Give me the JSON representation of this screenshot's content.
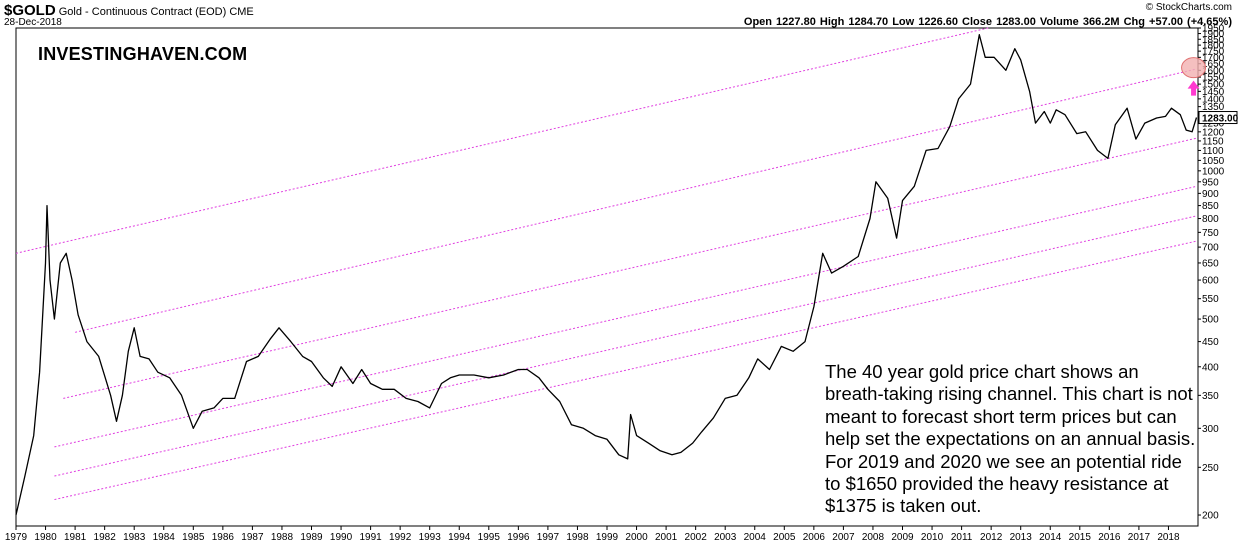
{
  "header": {
    "symbol": "$GOLD",
    "name": "Gold - Continuous Contract (EOD)",
    "exchange": "CME",
    "date": "28-Dec-2018",
    "stats": "Open 1227.80  High 1284.70  Low 1226.60  Close 1283.00  Volume 366.2M  Chg +57.00 (+4.65%)",
    "credit": "© StockCharts.com"
  },
  "brand": "INVESTINGHAVEN.COM",
  "annotation_lines": [
    "The 40 year gold price chart shows an",
    "breath-taking rising channel. This chart is not",
    "meant to forecast short term prices but can",
    "help set the expectations on an annual basis.",
    "For 2019 and 2020 we see an potential ride",
    "to $1650 provided the heavy resistance at",
    "$1375 is taken out."
  ],
  "colors": {
    "price": "#000000",
    "channel": "#e040e0",
    "target": "#ff3ad0",
    "target_fill": "#f2b0b0",
    "last_price_box": "#000000"
  },
  "chart_data": {
    "type": "line",
    "title": "$GOLD Gold - Continuous Contract (EOD) CME",
    "scale": "log",
    "ylim": [
      190,
      1950
    ],
    "xlim": [
      1979.0,
      2019.0
    ],
    "grid": false,
    "last_price_label": "1283.00",
    "y_ticks": [
      "200",
      "250",
      "300",
      "350",
      "400",
      "450",
      "500",
      "550",
      "600",
      "650",
      "700",
      "750",
      "800",
      "850",
      "900",
      "950",
      "1000",
      "1050",
      "1100",
      "1150",
      "1200",
      "1250",
      "1300",
      "1350",
      "1400",
      "1450",
      "1500",
      "1550",
      "1600",
      "1650",
      "1700",
      "1750",
      "1800",
      "1850",
      "1900",
      "1950"
    ],
    "x_ticks": [
      "1979",
      "1980",
      "1981",
      "1982",
      "1983",
      "1984",
      "1985",
      "1986",
      "1987",
      "1988",
      "1989",
      "1990",
      "1991",
      "1992",
      "1993",
      "1994",
      "1995",
      "1996",
      "1997",
      "1998",
      "1999",
      "2000",
      "2001",
      "2002",
      "2003",
      "2004",
      "2005",
      "2006",
      "2007",
      "2008",
      "2009",
      "2010",
      "2011",
      "2012",
      "2013",
      "2014",
      "2015",
      "2016",
      "2017",
      "2018"
    ],
    "series": [
      {
        "values": [
          [
            1979.0,
            200
          ],
          [
            1979.3,
            240
          ],
          [
            1979.6,
            290
          ],
          [
            1979.8,
            390
          ],
          [
            1980.0,
            650
          ],
          [
            1980.05,
            850
          ],
          [
            1980.15,
            600
          ],
          [
            1980.3,
            500
          ],
          [
            1980.5,
            650
          ],
          [
            1980.7,
            680
          ],
          [
            1980.9,
            600
          ],
          [
            1981.1,
            510
          ],
          [
            1981.4,
            450
          ],
          [
            1981.8,
            420
          ],
          [
            1982.2,
            350
          ],
          [
            1982.4,
            310
          ],
          [
            1982.6,
            350
          ],
          [
            1982.8,
            430
          ],
          [
            1983.0,
            480
          ],
          [
            1983.2,
            420
          ],
          [
            1983.5,
            415
          ],
          [
            1983.8,
            390
          ],
          [
            1984.2,
            380
          ],
          [
            1984.6,
            350
          ],
          [
            1985.0,
            300
          ],
          [
            1985.3,
            325
          ],
          [
            1985.7,
            330
          ],
          [
            1986.0,
            345
          ],
          [
            1986.4,
            345
          ],
          [
            1986.8,
            410
          ],
          [
            1987.2,
            420
          ],
          [
            1987.6,
            455
          ],
          [
            1987.9,
            480
          ],
          [
            1988.3,
            450
          ],
          [
            1988.7,
            420
          ],
          [
            1989.0,
            410
          ],
          [
            1989.4,
            380
          ],
          [
            1989.7,
            365
          ],
          [
            1990.0,
            400
          ],
          [
            1990.4,
            370
          ],
          [
            1990.7,
            395
          ],
          [
            1991.0,
            370
          ],
          [
            1991.4,
            360
          ],
          [
            1991.8,
            360
          ],
          [
            1992.2,
            345
          ],
          [
            1992.6,
            340
          ],
          [
            1993.0,
            330
          ],
          [
            1993.4,
            370
          ],
          [
            1993.7,
            380
          ],
          [
            1994.0,
            385
          ],
          [
            1994.5,
            385
          ],
          [
            1995.0,
            380
          ],
          [
            1995.5,
            385
          ],
          [
            1996.0,
            395
          ],
          [
            1996.3,
            395
          ],
          [
            1996.7,
            380
          ],
          [
            1997.0,
            360
          ],
          [
            1997.4,
            340
          ],
          [
            1997.8,
            305
          ],
          [
            1998.2,
            300
          ],
          [
            1998.6,
            290
          ],
          [
            1999.0,
            285
          ],
          [
            1999.4,
            265
          ],
          [
            1999.7,
            260
          ],
          [
            1999.8,
            320
          ],
          [
            2000.0,
            290
          ],
          [
            2000.4,
            280
          ],
          [
            2000.8,
            270
          ],
          [
            2001.2,
            265
          ],
          [
            2001.5,
            268
          ],
          [
            2001.9,
            280
          ],
          [
            2002.2,
            295
          ],
          [
            2002.6,
            315
          ],
          [
            2003.0,
            345
          ],
          [
            2003.4,
            350
          ],
          [
            2003.8,
            380
          ],
          [
            2004.1,
            415
          ],
          [
            2004.5,
            395
          ],
          [
            2004.9,
            440
          ],
          [
            2005.3,
            430
          ],
          [
            2005.7,
            450
          ],
          [
            2006.0,
            530
          ],
          [
            2006.3,
            680
          ],
          [
            2006.6,
            620
          ],
          [
            2007.0,
            640
          ],
          [
            2007.5,
            670
          ],
          [
            2007.9,
            800
          ],
          [
            2008.1,
            950
          ],
          [
            2008.5,
            880
          ],
          [
            2008.8,
            730
          ],
          [
            2009.0,
            870
          ],
          [
            2009.4,
            930
          ],
          [
            2009.8,
            1100
          ],
          [
            2010.2,
            1110
          ],
          [
            2010.6,
            1230
          ],
          [
            2010.9,
            1400
          ],
          [
            2011.3,
            1500
          ],
          [
            2011.6,
            1890
          ],
          [
            2011.8,
            1700
          ],
          [
            2012.1,
            1700
          ],
          [
            2012.5,
            1600
          ],
          [
            2012.8,
            1770
          ],
          [
            2013.0,
            1680
          ],
          [
            2013.3,
            1450
          ],
          [
            2013.5,
            1250
          ],
          [
            2013.8,
            1320
          ],
          [
            2014.0,
            1250
          ],
          [
            2014.2,
            1330
          ],
          [
            2014.5,
            1300
          ],
          [
            2014.9,
            1190
          ],
          [
            2015.2,
            1200
          ],
          [
            2015.6,
            1100
          ],
          [
            2015.95,
            1060
          ],
          [
            2016.2,
            1240
          ],
          [
            2016.6,
            1340
          ],
          [
            2016.9,
            1160
          ],
          [
            2017.2,
            1250
          ],
          [
            2017.6,
            1280
          ],
          [
            2017.9,
            1290
          ],
          [
            2018.1,
            1340
          ],
          [
            2018.4,
            1300
          ],
          [
            2018.6,
            1210
          ],
          [
            2018.8,
            1200
          ],
          [
            2018.95,
            1283
          ]
        ]
      }
    ],
    "channel_lines": [
      {
        "from": [
          1979.0,
          680
        ],
        "to": [
          2011.9,
          1950
        ]
      },
      {
        "from": [
          1981.0,
          470
        ],
        "to": [
          2018.95,
          1610
        ]
      },
      {
        "from": [
          1980.6,
          345
        ],
        "to": [
          2018.95,
          1165
        ]
      },
      {
        "from": [
          1980.3,
          275
        ],
        "to": [
          2018.95,
          930
        ]
      },
      {
        "from": [
          1980.3,
          240
        ],
        "to": [
          2018.95,
          810
        ]
      },
      {
        "from": [
          1980.3,
          215
        ],
        "to": [
          2018.95,
          720
        ]
      }
    ],
    "target_marker": {
      "x": 2018.85,
      "y": 1620
    }
  }
}
